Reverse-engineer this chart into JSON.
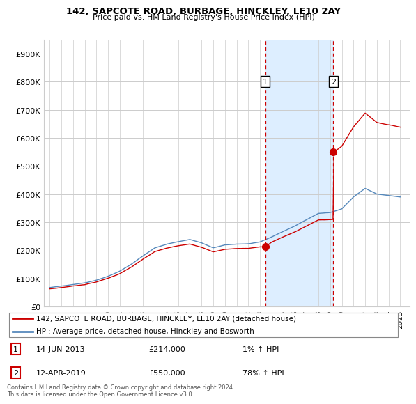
{
  "title": "142, SAPCOTE ROAD, BURBAGE, HINCKLEY, LE10 2AY",
  "subtitle": "Price paid vs. HM Land Registry's House Price Index (HPI)",
  "ylabel_ticks": [
    "£0",
    "£100K",
    "£200K",
    "£300K",
    "£400K",
    "£500K",
    "£600K",
    "£700K",
    "£800K",
    "£900K"
  ],
  "ytick_values": [
    0,
    100000,
    200000,
    300000,
    400000,
    500000,
    600000,
    700000,
    800000,
    900000
  ],
  "ylim": [
    0,
    950000
  ],
  "legend_line1": "142, SAPCOTE ROAD, BURBAGE, HINCKLEY, LE10 2AY (detached house)",
  "legend_line2": "HPI: Average price, detached house, Hinckley and Bosworth",
  "footer": "Contains HM Land Registry data © Crown copyright and database right 2024.\nThis data is licensed under the Open Government Licence v3.0.",
  "hpi_color": "#5588bb",
  "price_color": "#cc0000",
  "shaded_color": "#ddeeff",
  "grid_color": "#cccccc",
  "background_color": "#ffffff",
  "sale1_x": 2013.45,
  "sale1_y": 214000,
  "sale2_x": 2019.28,
  "sale2_y": 550000,
  "shade_xmin": 2013.45,
  "shade_xmax": 2019.28,
  "xlim_min": 1994.5,
  "xlim_max": 2025.8,
  "xtick_years": [
    1995,
    1996,
    1997,
    1998,
    1999,
    2000,
    2001,
    2002,
    2003,
    2004,
    2005,
    2006,
    2007,
    2008,
    2009,
    2010,
    2011,
    2012,
    2013,
    2014,
    2015,
    2016,
    2017,
    2018,
    2019,
    2020,
    2021,
    2022,
    2023,
    2024,
    2025
  ]
}
